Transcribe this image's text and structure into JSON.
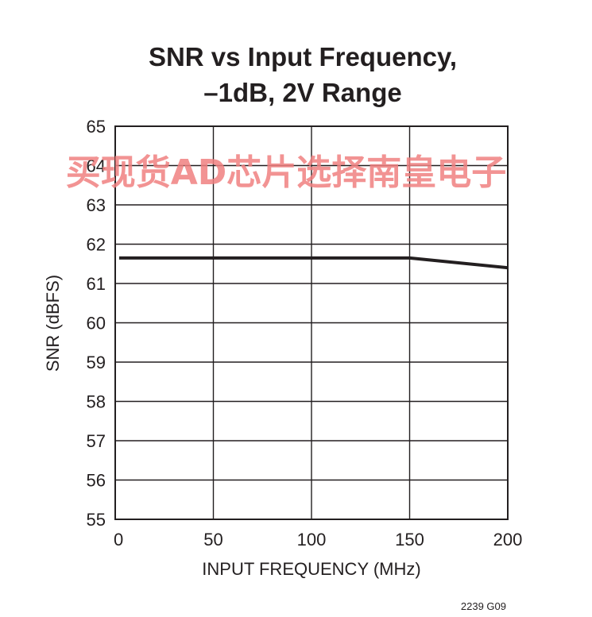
{
  "chart_data": {
    "type": "line",
    "title_lines": [
      "SNR vs Input Frequency,",
      "–1dB, 2V Range"
    ],
    "xlabel": "INPUT FREQUENCY (MHz)",
    "ylabel": "SNR (dBFS)",
    "xlim": [
      0,
      200
    ],
    "ylim": [
      55,
      65
    ],
    "x_ticks": [
      0,
      50,
      100,
      150,
      200
    ],
    "y_ticks": [
      55,
      56,
      57,
      58,
      59,
      60,
      61,
      62,
      63,
      64,
      65
    ],
    "grid": true,
    "series": [
      {
        "x": [
          2,
          50,
          100,
          150,
          200
        ],
        "values": [
          61.65,
          61.65,
          61.65,
          61.65,
          61.4
        ]
      }
    ],
    "figure_id": "2239 G09"
  },
  "watermark": "买现货AD芯片选择南皇电子"
}
